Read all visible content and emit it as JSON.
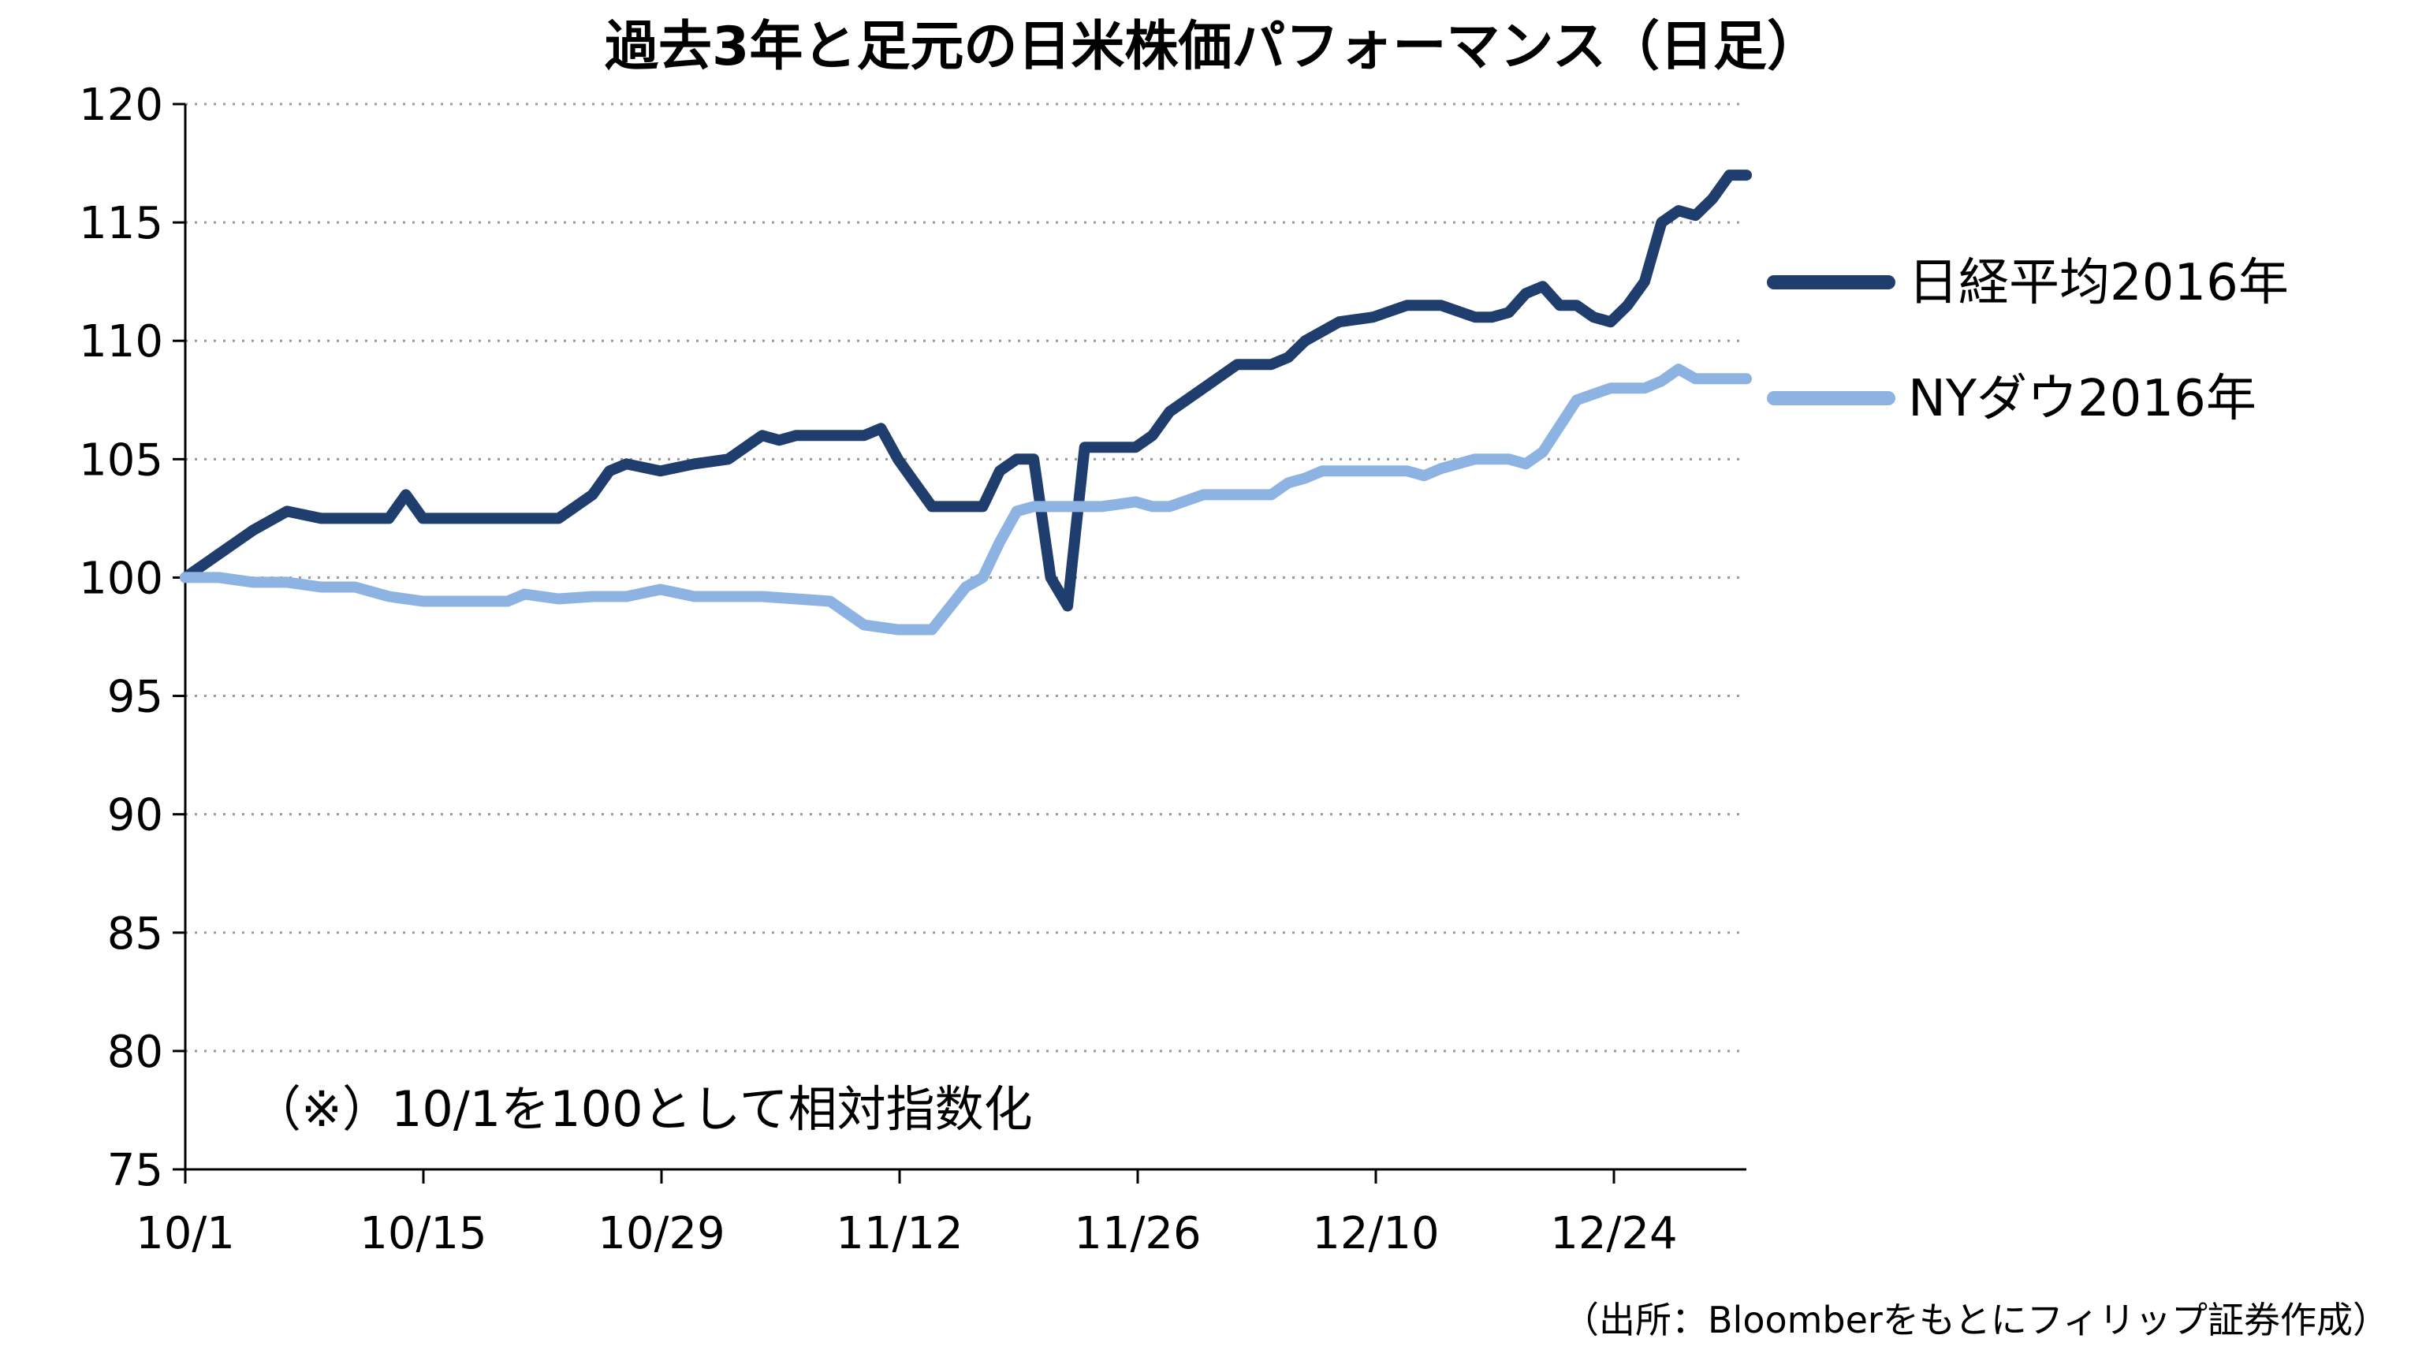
{
  "chart_data": {
    "type": "line",
    "title": "過去3年と足元の日米株価パフォーマンス（日足）",
    "annotation": "（※）10/1を100として相対指数化",
    "source": "（出所：Bloomberをもとにフィリップ証券作成）",
    "x_ticks": [
      "10/1",
      "10/15",
      "10/29",
      "11/12",
      "11/26",
      "12/10",
      "12/24"
    ],
    "x_range": [
      0,
      92
    ],
    "ylim": [
      75,
      120
    ],
    "y_ticks": [
      75,
      80,
      85,
      90,
      95,
      100,
      105,
      110,
      115,
      120
    ],
    "grid": "horizontal-dotted",
    "legend_position": "right",
    "series": [
      {
        "name": "日経平均2016年",
        "color": "#1F3E6E",
        "points": [
          [
            0,
            100
          ],
          [
            2,
            101
          ],
          [
            4,
            102
          ],
          [
            6,
            102.8
          ],
          [
            8,
            102.5
          ],
          [
            10,
            102.5
          ],
          [
            12,
            102.5
          ],
          [
            13,
            103.5
          ],
          [
            14,
            102.5
          ],
          [
            16,
            102.5
          ],
          [
            18,
            102.5
          ],
          [
            20,
            102.5
          ],
          [
            22,
            102.5
          ],
          [
            24,
            103.5
          ],
          [
            25,
            104.5
          ],
          [
            26,
            104.8
          ],
          [
            28,
            104.5
          ],
          [
            30,
            104.8
          ],
          [
            32,
            105
          ],
          [
            33,
            105.5
          ],
          [
            34,
            106
          ],
          [
            35,
            105.8
          ],
          [
            36,
            106
          ],
          [
            38,
            106
          ],
          [
            40,
            106
          ],
          [
            41,
            106.3
          ],
          [
            42,
            105
          ],
          [
            43,
            104
          ],
          [
            44,
            103
          ],
          [
            46,
            103
          ],
          [
            47,
            103
          ],
          [
            48,
            104.5
          ],
          [
            49,
            105
          ],
          [
            50,
            105
          ],
          [
            51,
            100
          ],
          [
            52,
            98.8
          ],
          [
            53,
            105.5
          ],
          [
            55,
            105.5
          ],
          [
            56,
            105.5
          ],
          [
            57,
            106
          ],
          [
            58,
            107
          ],
          [
            60,
            108
          ],
          [
            62,
            109
          ],
          [
            64,
            109
          ],
          [
            65,
            109.3
          ],
          [
            66,
            110
          ],
          [
            68,
            110.8
          ],
          [
            70,
            111
          ],
          [
            72,
            111.5
          ],
          [
            74,
            111.5
          ],
          [
            76,
            111
          ],
          [
            77,
            111
          ],
          [
            78,
            111.2
          ],
          [
            79,
            112
          ],
          [
            80,
            112.3
          ],
          [
            81,
            111.5
          ],
          [
            82,
            111.5
          ],
          [
            83,
            111
          ],
          [
            84,
            110.8
          ],
          [
            85,
            111.5
          ],
          [
            86,
            112.5
          ],
          [
            87,
            115
          ],
          [
            88,
            115.5
          ],
          [
            89,
            115.3
          ],
          [
            90,
            116
          ],
          [
            91,
            117
          ],
          [
            92,
            117
          ]
        ]
      },
      {
        "name": "NYダウ2016年",
        "color": "#8DB3E2",
        "points": [
          [
            0,
            100
          ],
          [
            2,
            100
          ],
          [
            4,
            99.8
          ],
          [
            6,
            99.8
          ],
          [
            8,
            99.6
          ],
          [
            10,
            99.6
          ],
          [
            12,
            99.2
          ],
          [
            14,
            99
          ],
          [
            16,
            99
          ],
          [
            18,
            99
          ],
          [
            19,
            99
          ],
          [
            20,
            99.3
          ],
          [
            22,
            99.1
          ],
          [
            24,
            99.2
          ],
          [
            26,
            99.2
          ],
          [
            28,
            99.5
          ],
          [
            30,
            99.2
          ],
          [
            32,
            99.2
          ],
          [
            34,
            99.2
          ],
          [
            36,
            99.1
          ],
          [
            38,
            99
          ],
          [
            39,
            98.5
          ],
          [
            40,
            98
          ],
          [
            42,
            97.8
          ],
          [
            44,
            97.8
          ],
          [
            46,
            99.6
          ],
          [
            47,
            100
          ],
          [
            48,
            101.5
          ],
          [
            49,
            102.8
          ],
          [
            50,
            103
          ],
          [
            52,
            103
          ],
          [
            54,
            103
          ],
          [
            56,
            103.2
          ],
          [
            57,
            103
          ],
          [
            58,
            103
          ],
          [
            60,
            103.5
          ],
          [
            62,
            103.5
          ],
          [
            64,
            103.5
          ],
          [
            65,
            104
          ],
          [
            66,
            104.2
          ],
          [
            67,
            104.5
          ],
          [
            68,
            104.5
          ],
          [
            70,
            104.5
          ],
          [
            72,
            104.5
          ],
          [
            73,
            104.3
          ],
          [
            74,
            104.6
          ],
          [
            76,
            105
          ],
          [
            78,
            105
          ],
          [
            79,
            104.8
          ],
          [
            80,
            105.3
          ],
          [
            82,
            107.5
          ],
          [
            84,
            108
          ],
          [
            86,
            108
          ],
          [
            87,
            108.3
          ],
          [
            88,
            108.8
          ],
          [
            89,
            108.4
          ],
          [
            90,
            108.4
          ],
          [
            92,
            108.4
          ]
        ]
      }
    ]
  }
}
